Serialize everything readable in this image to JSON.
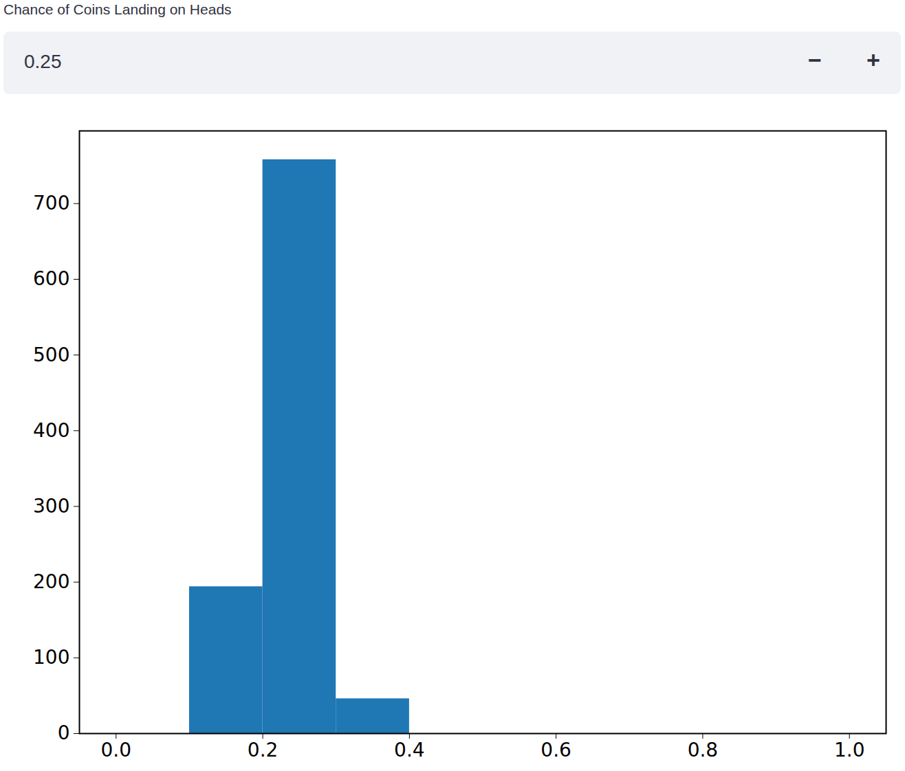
{
  "widget": {
    "label": "Chance of Coins Landing on Heads",
    "value": 0.25,
    "buttons": [
      "−",
      "+"
    ]
  },
  "chart_data": {
    "type": "histogram",
    "bins": [
      0,
      0.1,
      0.2,
      0.3,
      0.4,
      0.5,
      0.6,
      0.7,
      0.8,
      0.9,
      1
    ],
    "counts": [
      0,
      194,
      758,
      46,
      0,
      0,
      0,
      0,
      0,
      0
    ],
    "color": "#1f77b4",
    "xlim": [
      -0.05,
      1.05
    ],
    "xticks": [
      {
        "value": 0,
        "label": "0.0"
      },
      0.2,
      0.4,
      0.6,
      0.8,
      {
        "value": 1,
        "label": "1.0"
      }
    ],
    "ylim": [
      0,
      796
    ],
    "yticks": [
      0,
      100,
      200,
      300,
      400,
      500,
      600,
      700
    ],
    "grid": false
  }
}
